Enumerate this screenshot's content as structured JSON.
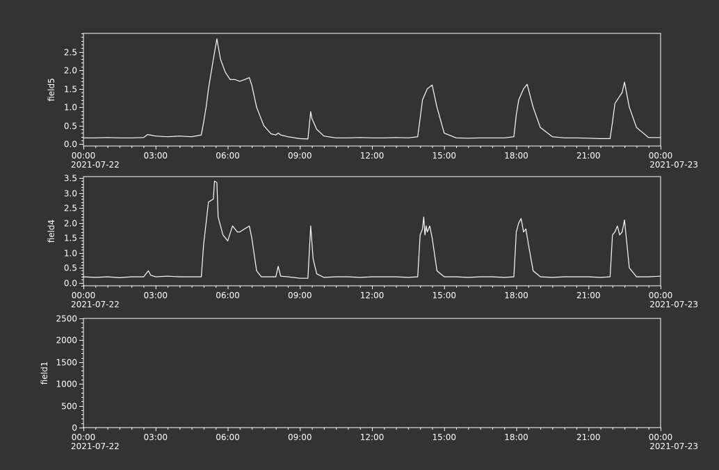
{
  "colors": {
    "background": "#333333",
    "foreground": "#ffffff",
    "line": "#ffffff"
  },
  "chart_data": [
    {
      "type": "line",
      "ylabel": "field5",
      "ylim": [
        -0.05,
        3.0
      ],
      "yticks": [
        0.0,
        0.5,
        1.0,
        1.5,
        2.0,
        2.5
      ],
      "ytick_labels": [
        "0.0",
        "0.5",
        "1.0",
        "1.5",
        "2.0",
        "2.5"
      ],
      "xlim": [
        "2021-07-22 00:00",
        "2021-07-23 00:00"
      ],
      "xtick_labels": [
        "00:00",
        "03:00",
        "06:00",
        "09:00",
        "12:00",
        "15:00",
        "18:00",
        "21:00",
        "00:00"
      ],
      "date_labels": [
        "2021-07-22",
        "2021-07-23"
      ],
      "grid": false,
      "series": [
        {
          "x": [
            "00:00",
            "00:30",
            "01:00",
            "01:30",
            "02:00",
            "02:30",
            "02:40",
            "03:00",
            "03:30",
            "04:00",
            "04:30",
            "04:54",
            "05:00",
            "05:06",
            "05:12",
            "05:24",
            "05:33",
            "05:42",
            "05:54",
            "06:06",
            "06:18",
            "06:30",
            "06:42",
            "06:54",
            "07:00",
            "07:12",
            "07:30",
            "07:48",
            "08:00",
            "08:06",
            "08:12",
            "08:30",
            "09:00",
            "09:20",
            "09:27",
            "09:30",
            "09:42",
            "10:00",
            "10:30",
            "11:00",
            "11:30",
            "12:00",
            "12:30",
            "13:00",
            "13:30",
            "13:54",
            "14:00",
            "14:06",
            "14:18",
            "14:30",
            "14:42",
            "15:00",
            "15:30",
            "16:00",
            "16:30",
            "17:00",
            "17:30",
            "17:54",
            "18:00",
            "18:06",
            "18:18",
            "18:27",
            "18:42",
            "19:00",
            "19:30",
            "20:00",
            "20:30",
            "21:00",
            "21:30",
            "21:54",
            "22:00",
            "22:06",
            "22:24",
            "22:30",
            "22:42",
            "23:00",
            "23:30",
            "23:59"
          ],
          "y": [
            0.17,
            0.17,
            0.18,
            0.17,
            0.17,
            0.18,
            0.26,
            0.22,
            0.2,
            0.22,
            0.2,
            0.25,
            0.6,
            1.0,
            1.5,
            2.3,
            2.85,
            2.3,
            1.95,
            1.75,
            1.75,
            1.7,
            1.75,
            1.8,
            1.6,
            1.0,
            0.5,
            0.28,
            0.25,
            0.3,
            0.25,
            0.2,
            0.15,
            0.14,
            0.88,
            0.7,
            0.4,
            0.22,
            0.17,
            0.17,
            0.18,
            0.17,
            0.17,
            0.18,
            0.17,
            0.2,
            0.7,
            1.2,
            1.5,
            1.6,
            1.0,
            0.3,
            0.17,
            0.16,
            0.17,
            0.17,
            0.17,
            0.2,
            0.8,
            1.2,
            1.5,
            1.62,
            1.0,
            0.45,
            0.2,
            0.17,
            0.17,
            0.16,
            0.15,
            0.15,
            0.6,
            1.1,
            1.4,
            1.68,
            1.0,
            0.45,
            0.18,
            0.18
          ]
        }
      ]
    },
    {
      "type": "line",
      "ylabel": "field4",
      "ylim": [
        -0.1,
        3.55
      ],
      "yticks": [
        0.0,
        0.5,
        1.0,
        1.5,
        2.0,
        2.5,
        3.0,
        3.5
      ],
      "ytick_labels": [
        "0.0",
        "0.5",
        "1.0",
        "1.5",
        "2.0",
        "2.5",
        "3.0",
        "3.5"
      ],
      "xlim": [
        "2021-07-22 00:00",
        "2021-07-23 00:00"
      ],
      "xtick_labels": [
        "00:00",
        "03:00",
        "06:00",
        "09:00",
        "12:00",
        "15:00",
        "18:00",
        "21:00",
        "00:00"
      ],
      "date_labels": [
        "2021-07-22",
        "2021-07-23"
      ],
      "grid": false,
      "series": [
        {
          "x": [
            "00:00",
            "00:30",
            "01:00",
            "01:30",
            "02:00",
            "02:30",
            "02:42",
            "02:48",
            "03:00",
            "03:30",
            "04:00",
            "04:30",
            "04:54",
            "05:00",
            "05:06",
            "05:12",
            "05:24",
            "05:27",
            "05:33",
            "05:36",
            "05:48",
            "06:00",
            "06:12",
            "06:24",
            "06:30",
            "06:42",
            "06:54",
            "07:00",
            "07:12",
            "07:24",
            "07:48",
            "08:00",
            "08:06",
            "08:12",
            "08:30",
            "09:00",
            "09:20",
            "09:27",
            "09:33",
            "09:42",
            "10:00",
            "10:30",
            "11:00",
            "11:30",
            "12:00",
            "12:30",
            "13:00",
            "13:30",
            "13:54",
            "14:00",
            "14:06",
            "14:09",
            "14:12",
            "14:15",
            "14:18",
            "14:24",
            "14:30",
            "14:42",
            "15:00",
            "15:30",
            "16:00",
            "16:30",
            "17:00",
            "17:30",
            "17:54",
            "18:00",
            "18:06",
            "18:12",
            "18:18",
            "18:24",
            "18:30",
            "18:42",
            "19:00",
            "19:30",
            "20:00",
            "20:30",
            "21:00",
            "21:30",
            "21:54",
            "22:00",
            "22:06",
            "22:12",
            "22:18",
            "22:24",
            "22:30",
            "22:42",
            "23:00",
            "23:30",
            "23:59"
          ],
          "y": [
            0.2,
            0.18,
            0.2,
            0.17,
            0.2,
            0.2,
            0.4,
            0.25,
            0.2,
            0.22,
            0.2,
            0.2,
            0.2,
            1.3,
            2.0,
            2.7,
            2.8,
            3.4,
            3.35,
            2.2,
            1.6,
            1.4,
            1.9,
            1.7,
            1.7,
            1.8,
            1.9,
            1.5,
            0.4,
            0.2,
            0.2,
            0.2,
            0.55,
            0.22,
            0.2,
            0.15,
            0.15,
            1.9,
            0.8,
            0.3,
            0.18,
            0.2,
            0.2,
            0.18,
            0.2,
            0.2,
            0.2,
            0.18,
            0.2,
            1.6,
            1.8,
            2.2,
            1.6,
            1.9,
            1.7,
            1.9,
            1.5,
            0.4,
            0.2,
            0.2,
            0.18,
            0.2,
            0.2,
            0.18,
            0.2,
            1.7,
            2.0,
            2.15,
            1.7,
            1.8,
            1.3,
            0.4,
            0.2,
            0.18,
            0.2,
            0.2,
            0.2,
            0.18,
            0.2,
            1.6,
            1.7,
            1.9,
            1.6,
            1.7,
            2.1,
            0.5,
            0.2,
            0.2,
            0.22
          ]
        }
      ]
    },
    {
      "type": "line",
      "ylabel": "field1",
      "ylim": [
        0,
        2500
      ],
      "yticks": [
        0,
        500,
        1000,
        1500,
        2000,
        2500
      ],
      "ytick_labels": [
        "0",
        "500",
        "1000",
        "1500",
        "2000",
        "2500"
      ],
      "xlim": [
        "2021-07-22 00:00",
        "2021-07-23 00:00"
      ],
      "xtick_labels": [
        "00:00",
        "03:00",
        "06:00",
        "09:00",
        "12:00",
        "15:00",
        "18:00",
        "21:00",
        "00:00"
      ],
      "date_labels": [
        "2021-07-22",
        "2021-07-23"
      ],
      "grid": false,
      "series": []
    }
  ]
}
